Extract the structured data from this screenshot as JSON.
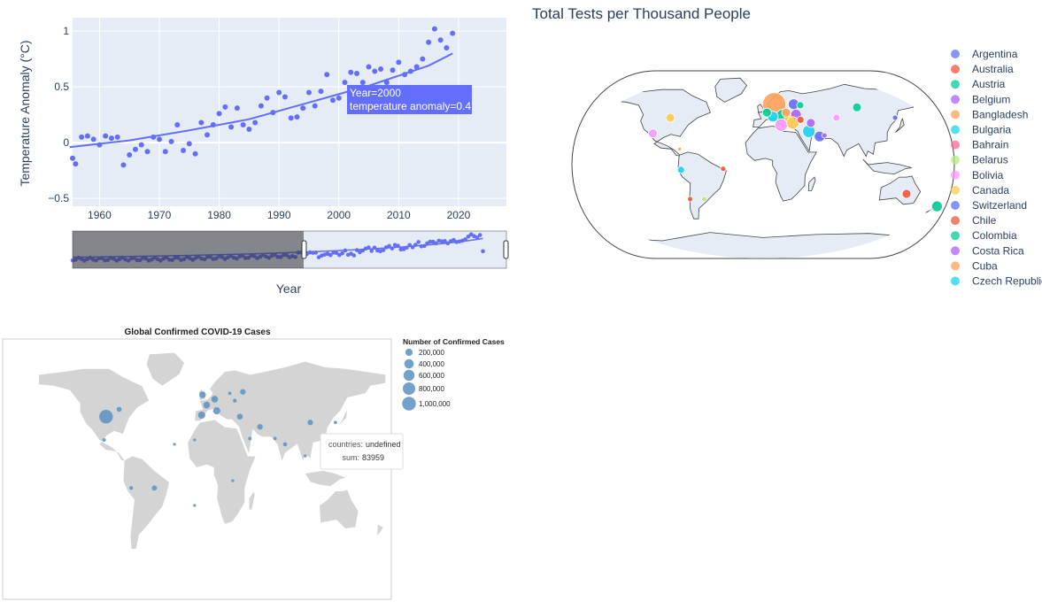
{
  "chart_data": [
    {
      "type": "scatter",
      "ylabel": "Temperature Anomaly (°C)",
      "xlabel": "Year",
      "xlim": [
        1955.5,
        2028
      ],
      "ylim": [
        -0.57,
        1.12
      ],
      "x_ticks": [
        1960,
        1970,
        1980,
        1990,
        2000,
        2010,
        2020
      ],
      "y_ticks": [
        -0.5,
        0,
        0.5,
        1
      ],
      "y_tick_labels": [
        "−0.5",
        "0",
        "0.5",
        "1"
      ],
      "color": "#636efa",
      "x": [
        1955,
        1956,
        1957,
        1958,
        1959,
        1960,
        1961,
        1962,
        1963,
        1964,
        1965,
        1966,
        1967,
        1968,
        1969,
        1970,
        1971,
        1972,
        1973,
        1974,
        1975,
        1976,
        1977,
        1978,
        1979,
        1980,
        1981,
        1982,
        1983,
        1984,
        1985,
        1986,
        1987,
        1988,
        1989,
        1990,
        1991,
        1992,
        1993,
        1994,
        1995,
        1996,
        1997,
        1998,
        1999,
        2000,
        2001,
        2002,
        2003,
        2004,
        2005,
        2006,
        2007,
        2008,
        2009,
        2010,
        2011,
        2012,
        2013,
        2014,
        2015,
        2016,
        2017,
        2018,
        2019
      ],
      "y": [
        -0.14,
        -0.19,
        0.05,
        0.06,
        0.03,
        -0.02,
        0.06,
        0.04,
        0.05,
        -0.2,
        -0.11,
        -0.06,
        -0.02,
        -0.08,
        0.05,
        0.03,
        -0.08,
        0.01,
        0.16,
        -0.07,
        -0.01,
        -0.1,
        0.18,
        0.07,
        0.16,
        0.26,
        0.32,
        0.14,
        0.31,
        0.16,
        0.12,
        0.18,
        0.33,
        0.4,
        0.27,
        0.45,
        0.41,
        0.22,
        0.23,
        0.31,
        0.45,
        0.33,
        0.46,
        0.61,
        0.38,
        0.4,
        0.54,
        0.63,
        0.62,
        0.54,
        0.68,
        0.64,
        0.66,
        0.54,
        0.65,
        0.72,
        0.61,
        0.64,
        0.68,
        0.75,
        0.9,
        1.02,
        0.92,
        0.85,
        0.98
      ],
      "trend_x": [
        1955,
        1965,
        1975,
        1985,
        1995,
        2005,
        2015,
        2019
      ],
      "trend_y": [
        -0.04,
        0.02,
        0.11,
        0.21,
        0.36,
        0.51,
        0.69,
        0.8
      ],
      "tooltip": {
        "line1": "Year=2000",
        "line2": "temperature anomaly=0.4",
        "x": 2000,
        "y": 0.4
      },
      "rangeslider": {
        "selected_from": 1994,
        "x_min": 1880,
        "x_max": 2020
      }
    },
    {
      "type": "scatter_geo",
      "title": "Total Tests per Thousand People",
      "legend": [
        {
          "name": "Argentina",
          "color": "#636efa"
        },
        {
          "name": "Australia",
          "color": "#EF553B"
        },
        {
          "name": "Austria",
          "color": "#00cc96"
        },
        {
          "name": "Belgium",
          "color": "#ab63fa"
        },
        {
          "name": "Bangladesh",
          "color": "#FFA15A"
        },
        {
          "name": "Bulgaria",
          "color": "#19d3f3"
        },
        {
          "name": "Bahrain",
          "color": "#FF6692"
        },
        {
          "name": "Belarus",
          "color": "#B6E880"
        },
        {
          "name": "Bolivia",
          "color": "#FF97FF"
        },
        {
          "name": "Canada",
          "color": "#FECB52"
        },
        {
          "name": "Switzerland",
          "color": "#636efa"
        },
        {
          "name": "Chile",
          "color": "#EF553B"
        },
        {
          "name": "Colombia",
          "color": "#00cc96"
        },
        {
          "name": "Costa Rica",
          "color": "#ab63fa"
        },
        {
          "name": "Cuba",
          "color": "#FFA15A"
        },
        {
          "name": "Czech Republic",
          "color": "#19d3f3"
        }
      ],
      "bubbles": [
        {
          "lon": 12,
          "lat": 58,
          "r": 13,
          "color": "#FFA15A"
        },
        {
          "lon": -95,
          "lat": 45,
          "r": 5,
          "color": "#FECB52"
        },
        {
          "lon": -108,
          "lat": 30,
          "r": 5,
          "color": "#FF97FF"
        },
        {
          "lon": 33,
          "lat": 58,
          "r": 6,
          "color": "#636efa"
        },
        {
          "lon": 40,
          "lat": 57,
          "r": 4,
          "color": "#00cc96"
        },
        {
          "lon": 100,
          "lat": 55,
          "r": 5,
          "color": "#00cc96"
        },
        {
          "lon": 20,
          "lat": 47,
          "r": 7,
          "color": "#00cc96"
        },
        {
          "lon": 28,
          "lat": 45,
          "r": 7,
          "color": "#FECB52"
        },
        {
          "lon": 34,
          "lat": 48,
          "r": 6,
          "color": "#ab63fa"
        },
        {
          "lon": 24,
          "lat": 50,
          "r": 5,
          "color": "#FFA15A"
        },
        {
          "lon": 10,
          "lat": 46,
          "r": 6,
          "color": "#19d3f3"
        },
        {
          "lon": 4,
          "lat": 50,
          "r": 5,
          "color": "#00cc96"
        },
        {
          "lon": 18,
          "lat": 38,
          "r": 7,
          "color": "#FF97FF"
        },
        {
          "lon": 30,
          "lat": 40,
          "r": 7,
          "color": "#FECB52"
        },
        {
          "lon": 38,
          "lat": 43,
          "r": 4,
          "color": "#EF553B"
        },
        {
          "lon": 45,
          "lat": 32,
          "r": 7,
          "color": "#19d3f3"
        },
        {
          "lon": 55,
          "lat": 27,
          "r": 6,
          "color": "#636efa"
        },
        {
          "lon": 48,
          "lat": 40,
          "r": 5,
          "color": "#ab63fa"
        },
        {
          "lon": 75,
          "lat": 45,
          "r": 4,
          "color": "#FF97FF"
        },
        {
          "lon": 135,
          "lat": 45,
          "r": 3,
          "color": "#636efa"
        },
        {
          "lon": 140,
          "lat": -28,
          "r": 5,
          "color": "#EF553B"
        },
        {
          "lon": 175,
          "lat": -40,
          "r": 6,
          "color": "#00cc96"
        },
        {
          "lon": -78,
          "lat": -5,
          "r": 4,
          "color": "#19d3f3"
        },
        {
          "lon": -72,
          "lat": -33,
          "r": 3,
          "color": "#EF553B"
        },
        {
          "lon": -58,
          "lat": -33,
          "r": 3,
          "color": "#B6E880"
        },
        {
          "lon": -80,
          "lat": 15,
          "r": 2,
          "color": "#FFA15A"
        },
        {
          "lon": 60,
          "lat": 28,
          "r": 3,
          "color": "#ab63fa"
        },
        {
          "lon": -38,
          "lat": -4,
          "r": 3,
          "color": "#EF553B"
        }
      ]
    },
    {
      "type": "scatter_geo",
      "title": "Global Confirmed COVID-19 Cases",
      "legend_title": "Number of Confirmed Cases",
      "size_legend": [
        "200,000",
        "400,000",
        "600,000",
        "800,000",
        "1,000,000"
      ],
      "color": "#5b91c0",
      "bubbles": [
        {
          "lon": -98,
          "lat": 39,
          "cases": 1000000
        },
        {
          "lon": -85,
          "lat": 44,
          "cases": 60000
        },
        {
          "lon": -100,
          "lat": 23,
          "cases": 20000
        },
        {
          "lon": -3,
          "lat": 40,
          "cases": 200000
        },
        {
          "lon": 12,
          "lat": 43,
          "cases": 200000
        },
        {
          "lon": 2,
          "lat": 47,
          "cases": 160000
        },
        {
          "lon": 10,
          "lat": 51,
          "cases": 160000
        },
        {
          "lon": -2,
          "lat": 54,
          "cases": 150000
        },
        {
          "lon": 35,
          "lat": 39,
          "cases": 110000
        },
        {
          "lon": 38,
          "lat": 56,
          "cases": 90000
        },
        {
          "lon": 55,
          "lat": 32,
          "cases": 90000
        },
        {
          "lon": 105,
          "lat": 35,
          "cases": 84000
        },
        {
          "lon": -50,
          "lat": -10,
          "cases": 70000
        },
        {
          "lon": -73,
          "lat": -10,
          "cases": 20000
        },
        {
          "lon": -30,
          "lat": 20,
          "cases": 5000
        },
        {
          "lon": -10,
          "lat": 23,
          "cases": 5000
        },
        {
          "lon": 28,
          "lat": -5,
          "cases": 5000
        },
        {
          "lon": 45,
          "lat": 24,
          "cases": 15000
        },
        {
          "lon": 70,
          "lat": 24,
          "cases": 10000
        },
        {
          "lon": 80,
          "lat": 20,
          "cases": 30000
        },
        {
          "lon": 100,
          "lat": 12,
          "cases": 5000
        },
        {
          "lon": 130,
          "lat": 35,
          "cases": 12000
        },
        {
          "lon": 30,
          "lat": 50,
          "cases": 20000
        },
        {
          "lon": 25,
          "lat": 55,
          "cases": 10000
        },
        {
          "lon": -10,
          "lat": -22,
          "cases": 5000
        }
      ],
      "tooltip": {
        "key1": "countries:",
        "val1": "undefined",
        "key2": "sum:",
        "val2": "83959"
      }
    }
  ]
}
